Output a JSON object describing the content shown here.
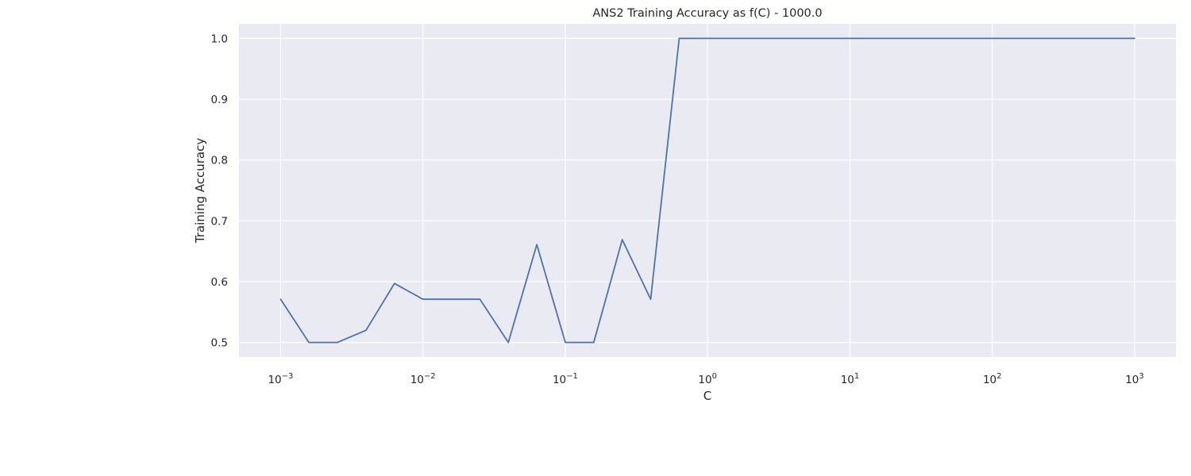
{
  "chart_data": {
    "type": "line",
    "title": "ANS2 Training Accuracy as f(C) - 1000.0",
    "xlabel": "C",
    "ylabel": "Training Accuracy",
    "xscale": "log",
    "xlim": [
      0.00051,
      1950
    ],
    "ylim": [
      0.476,
      1.024
    ],
    "grid": true,
    "background_color": "#eaeaf2",
    "grid_color": "#ffffff",
    "x_ticks": [
      {
        "value": 0.001,
        "base": "10",
        "exp": "−3"
      },
      {
        "value": 0.01,
        "base": "10",
        "exp": "−2"
      },
      {
        "value": 0.1,
        "base": "10",
        "exp": "−1"
      },
      {
        "value": 1,
        "base": "10",
        "exp": "0"
      },
      {
        "value": 10,
        "base": "10",
        "exp": "1"
      },
      {
        "value": 100,
        "base": "10",
        "exp": "2"
      },
      {
        "value": 1000,
        "base": "10",
        "exp": "3"
      }
    ],
    "y_ticks": [
      {
        "value": 0.5,
        "label": "0.5"
      },
      {
        "value": 0.6,
        "label": "0.6"
      },
      {
        "value": 0.7,
        "label": "0.7"
      },
      {
        "value": 0.8,
        "label": "0.8"
      },
      {
        "value": 0.9,
        "label": "0.9"
      },
      {
        "value": 1.0,
        "label": "1.0"
      }
    ],
    "series": [
      {
        "color": "#4c72b0",
        "x": [
          0.001,
          0.00158,
          0.00251,
          0.00398,
          0.00631,
          0.01,
          0.01585,
          0.02512,
          0.03981,
          0.0631,
          0.1,
          0.1585,
          0.2512,
          0.3981,
          0.631,
          1,
          1.585,
          2.512,
          3.981,
          6.31,
          10,
          15.85,
          25.12,
          39.81,
          63.1,
          100,
          158.5,
          251.2,
          398.1,
          631,
          1000
        ],
        "y": [
          0.571,
          0.5,
          0.5,
          0.52,
          0.597,
          0.571,
          0.571,
          0.571,
          0.5,
          0.661,
          0.5,
          0.5,
          0.669,
          0.571,
          1.0,
          1.0,
          1.0,
          1.0,
          1.0,
          1.0,
          1.0,
          1.0,
          1.0,
          1.0,
          1.0,
          1.0,
          1.0,
          1.0,
          1.0,
          1.0,
          1.0
        ]
      }
    ]
  }
}
